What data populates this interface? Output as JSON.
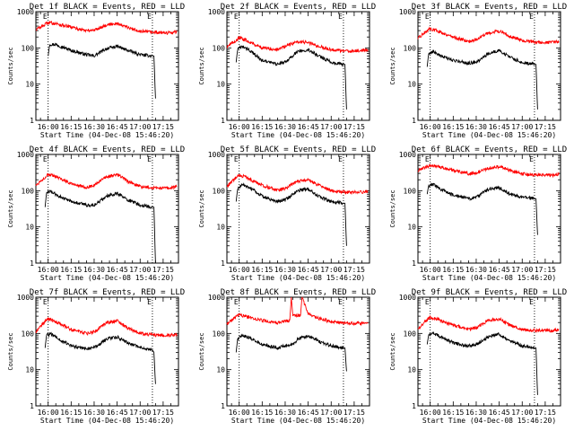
{
  "chart_data": [
    {
      "type": "line",
      "title": "Det 1f BLACK = Events, RED = LLD",
      "xlabel": "Start Time (04-Dec-08 15:46:20)",
      "ylabel": "Counts/sec",
      "xlim": [
        "15:52",
        "17:25"
      ],
      "ylim": [
        1,
        1000
      ],
      "yscale": "log",
      "xticks": [
        "16:00",
        "16:15",
        "16:30",
        "16:45",
        "17:00",
        "17:15"
      ],
      "yticks": [
        "1",
        "10",
        "100",
        "1000"
      ],
      "corner_markers": [
        "E",
        "E"
      ],
      "dotted_vlines": [
        "16:00",
        "17:08"
      ],
      "series": [
        {
          "color": "#000000",
          "x": [
            "16:00",
            "16:01",
            "16:05",
            "16:15",
            "16:25",
            "16:30",
            "16:38",
            "16:45",
            "16:52",
            "17:00",
            "17:04",
            "17:08",
            "17:09",
            "17:10"
          ],
          "values": [
            60,
            125,
            125,
            85,
            65,
            60,
            95,
            110,
            85,
            65,
            62,
            60,
            60,
            4
          ]
        },
        {
          "color": "#ff0000",
          "x": [
            "15:52",
            "15:58",
            "16:00",
            "16:05",
            "16:15",
            "16:25",
            "16:30",
            "16:38",
            "16:45",
            "16:52",
            "17:00",
            "17:10",
            "17:20",
            "17:24"
          ],
          "values": [
            320,
            440,
            500,
            470,
            370,
            300,
            310,
            430,
            480,
            360,
            290,
            265,
            260,
            280
          ]
        }
      ]
    },
    {
      "type": "line",
      "title": "Det 2f BLACK = Events, RED = LLD",
      "xlabel": "Start Time (04-Dec-08 15:46:20)",
      "ylabel": "Counts/sec",
      "xlim": [
        "15:52",
        "17:25"
      ],
      "ylim": [
        1,
        1000
      ],
      "yscale": "log",
      "xticks": [
        "16:00",
        "16:15",
        "16:30",
        "16:45",
        "17:00",
        "17:15"
      ],
      "yticks": [
        "1",
        "10",
        "100",
        "1000"
      ],
      "corner_markers": [
        "E",
        "E"
      ],
      "dotted_vlines": [
        "16:00",
        "17:08"
      ],
      "series": [
        {
          "color": "#000000",
          "x": [
            "15:58",
            "15:59",
            "16:02",
            "16:07",
            "16:15",
            "16:25",
            "16:30",
            "16:38",
            "16:45",
            "16:52",
            "17:00",
            "17:08",
            "17:09",
            "17:10"
          ],
          "values": [
            40,
            90,
            110,
            85,
            45,
            35,
            40,
            80,
            90,
            60,
            40,
            35,
            35,
            2
          ]
        },
        {
          "color": "#ff0000",
          "x": [
            "15:52",
            "15:56",
            "16:00",
            "16:05",
            "16:15",
            "16:25",
            "16:30",
            "16:38",
            "16:45",
            "16:52",
            "17:00",
            "17:10",
            "17:20",
            "17:24"
          ],
          "values": [
            110,
            140,
            190,
            160,
            100,
            90,
            110,
            150,
            140,
            110,
            90,
            80,
            85,
            90
          ]
        }
      ]
    },
    {
      "type": "line",
      "title": "Det 3f BLACK = Events, RED = LLD",
      "xlabel": "Start Time (04-Dec-08 15:46:20)",
      "ylabel": "Counts/sec",
      "xlim": [
        "15:52",
        "17:25"
      ],
      "ylim": [
        1,
        1000
      ],
      "yscale": "log",
      "xticks": [
        "16:00",
        "16:15",
        "16:30",
        "16:45",
        "17:00",
        "17:15"
      ],
      "yticks": [
        "1",
        "10",
        "100",
        "1000"
      ],
      "corner_markers": [
        "E",
        "E"
      ],
      "dotted_vlines": [
        "16:00",
        "17:08"
      ],
      "series": [
        {
          "color": "#000000",
          "x": [
            "15:58",
            "15:59",
            "16:02",
            "16:07",
            "16:15",
            "16:25",
            "16:30",
            "16:38",
            "16:45",
            "16:52",
            "17:00",
            "17:08",
            "17:09",
            "17:10"
          ],
          "values": [
            30,
            70,
            80,
            60,
            45,
            38,
            40,
            70,
            85,
            55,
            40,
            35,
            35,
            2
          ]
        },
        {
          "color": "#ff0000",
          "x": [
            "15:52",
            "15:56",
            "16:00",
            "16:05",
            "16:15",
            "16:25",
            "16:30",
            "16:38",
            "16:45",
            "16:52",
            "17:00",
            "17:10",
            "17:20",
            "17:24"
          ],
          "values": [
            180,
            260,
            340,
            290,
            200,
            150,
            170,
            260,
            290,
            210,
            160,
            140,
            140,
            150
          ]
        }
      ]
    },
    {
      "type": "line",
      "title": "Det 4f BLACK = Events, RED = LLD",
      "xlabel": "Start Time (04-Dec-08 15:46:20)",
      "ylabel": "Counts/sec",
      "xlim": [
        "15:52",
        "17:25"
      ],
      "ylim": [
        1,
        1000
      ],
      "yscale": "log",
      "xticks": [
        "16:00",
        "16:15",
        "16:30",
        "16:45",
        "17:00",
        "17:15"
      ],
      "yticks": [
        "1",
        "10",
        "100",
        "1000"
      ],
      "corner_markers": [
        "E",
        "E"
      ],
      "dotted_vlines": [
        "16:00",
        "17:08"
      ],
      "series": [
        {
          "color": "#000000",
          "x": [
            "15:58",
            "15:59",
            "16:02",
            "16:07",
            "16:15",
            "16:25",
            "16:30",
            "16:38",
            "16:45",
            "16:52",
            "17:00",
            "17:08",
            "17:09",
            "17:10"
          ],
          "values": [
            35,
            90,
            95,
            70,
            50,
            40,
            40,
            70,
            85,
            55,
            40,
            35,
            35,
            1
          ]
        },
        {
          "color": "#ff0000",
          "x": [
            "15:52",
            "15:56",
            "16:00",
            "16:05",
            "16:15",
            "16:25",
            "16:30",
            "16:38",
            "16:45",
            "16:52",
            "17:00",
            "17:10",
            "17:20",
            "17:24"
          ],
          "values": [
            140,
            200,
            280,
            240,
            160,
            120,
            140,
            240,
            280,
            180,
            130,
            120,
            120,
            130
          ]
        }
      ]
    },
    {
      "type": "line",
      "title": "Det 5f BLACK = Events, RED = LLD",
      "xlabel": "Start Time (04-Dec-08 15:46:20)",
      "ylabel": "Counts/sec",
      "xlim": [
        "15:52",
        "17:25"
      ],
      "ylim": [
        1,
        1000
      ],
      "yscale": "log",
      "xticks": [
        "16:00",
        "16:15",
        "16:30",
        "16:45",
        "17:00",
        "17:15"
      ],
      "yticks": [
        "1",
        "10",
        "100",
        "1000"
      ],
      "corner_markers": [
        "E",
        "E"
      ],
      "dotted_vlines": [
        "16:00",
        "17:08"
      ],
      "series": [
        {
          "color": "#000000",
          "x": [
            "15:58",
            "15:59",
            "16:02",
            "16:07",
            "16:15",
            "16:25",
            "16:30",
            "16:38",
            "16:45",
            "16:52",
            "17:00",
            "17:08",
            "17:09",
            "17:10"
          ],
          "values": [
            50,
            110,
            145,
            120,
            70,
            50,
            55,
            100,
            110,
            70,
            50,
            45,
            45,
            3
          ]
        },
        {
          "color": "#ff0000",
          "x": [
            "15:52",
            "15:56",
            "16:00",
            "16:05",
            "16:15",
            "16:25",
            "16:30",
            "16:38",
            "16:45",
            "16:52",
            "17:00",
            "17:10",
            "17:20",
            "17:24"
          ],
          "values": [
            130,
            190,
            270,
            230,
            140,
            105,
            115,
            180,
            200,
            140,
            100,
            90,
            90,
            95
          ]
        }
      ]
    },
    {
      "type": "line",
      "title": "Det 6f BLACK = Events, RED = LLD",
      "xlabel": "Start Time (04-Dec-08 15:46:20)",
      "ylabel": "Counts/sec",
      "xlim": [
        "15:52",
        "17:25"
      ],
      "ylim": [
        1,
        1000
      ],
      "yscale": "log",
      "xticks": [
        "16:00",
        "16:15",
        "16:30",
        "16:45",
        "17:00",
        "17:15"
      ],
      "yticks": [
        "1",
        "10",
        "100",
        "1000"
      ],
      "corner_markers": [
        "E",
        "E"
      ],
      "dotted_vlines": [
        "16:00",
        "17:08"
      ],
      "series": [
        {
          "color": "#000000",
          "x": [
            "15:58",
            "15:59",
            "16:02",
            "16:07",
            "16:15",
            "16:25",
            "16:30",
            "16:38",
            "16:45",
            "16:52",
            "17:00",
            "17:08",
            "17:09",
            "17:10"
          ],
          "values": [
            80,
            140,
            150,
            110,
            75,
            60,
            65,
            110,
            120,
            80,
            65,
            60,
            60,
            6
          ]
        },
        {
          "color": "#ff0000",
          "x": [
            "15:52",
            "15:56",
            "16:00",
            "16:05",
            "16:15",
            "16:25",
            "16:30",
            "16:38",
            "16:45",
            "16:52",
            "17:00",
            "17:10",
            "17:20",
            "17:24"
          ],
          "values": [
            350,
            430,
            500,
            460,
            360,
            300,
            310,
            420,
            460,
            360,
            290,
            270,
            270,
            280
          ]
        }
      ]
    },
    {
      "type": "line",
      "title": "Det 7f BLACK = Events, RED = LLD",
      "xlabel": "Start Time (04-Dec-08 15:46:20)",
      "ylabel": "Counts/sec",
      "xlim": [
        "15:52",
        "17:25"
      ],
      "ylim": [
        1,
        1000
      ],
      "yscale": "log",
      "xticks": [
        "16:00",
        "16:15",
        "16:30",
        "16:45",
        "17:00",
        "17:15"
      ],
      "yticks": [
        "1",
        "10",
        "100",
        "1000"
      ],
      "corner_markers": [
        "E",
        "E"
      ],
      "dotted_vlines": [
        "16:00",
        "17:08"
      ],
      "series": [
        {
          "color": "#000000",
          "x": [
            "15:58",
            "15:59",
            "16:02",
            "16:07",
            "16:15",
            "16:25",
            "16:30",
            "16:38",
            "16:45",
            "16:52",
            "17:00",
            "17:08",
            "17:09",
            "17:10"
          ],
          "values": [
            40,
            90,
            95,
            70,
            45,
            38,
            40,
            70,
            80,
            55,
            40,
            35,
            30,
            4
          ]
        },
        {
          "color": "#ff0000",
          "x": [
            "15:52",
            "15:56",
            "16:00",
            "16:05",
            "16:15",
            "16:25",
            "16:30",
            "16:38",
            "16:45",
            "16:52",
            "17:00",
            "17:10",
            "17:20",
            "17:24"
          ],
          "values": [
            110,
            180,
            250,
            210,
            130,
            100,
            110,
            200,
            220,
            140,
            100,
            90,
            90,
            95
          ]
        }
      ]
    },
    {
      "type": "line",
      "title": "Det 8f BLACK = Events, RED = LLD",
      "xlabel": "Start Time (04-Dec-08 15:46:20)",
      "ylabel": "Counts/sec",
      "xlim": [
        "15:52",
        "17:25"
      ],
      "ylim": [
        1,
        1000
      ],
      "yscale": "log",
      "xticks": [
        "16:00",
        "16:15",
        "16:30",
        "16:45",
        "17:00",
        "17:15"
      ],
      "yticks": [
        "1",
        "10",
        "100",
        "1000"
      ],
      "corner_markers": [
        "E",
        "E"
      ],
      "dotted_vlines": [
        "16:00",
        "17:08"
      ],
      "series": [
        {
          "color": "#000000",
          "x": [
            "15:58",
            "15:59",
            "16:02",
            "16:07",
            "16:15",
            "16:25",
            "16:30",
            "16:37",
            "16:38",
            "16:45",
            "16:52",
            "17:00",
            "17:08",
            "17:09",
            "17:10"
          ],
          "values": [
            30,
            70,
            90,
            75,
            50,
            40,
            45,
            55,
            70,
            85,
            60,
            45,
            40,
            40,
            9
          ]
        },
        {
          "color": "#ff0000",
          "x": [
            "15:52",
            "15:56",
            "16:00",
            "16:05",
            "16:15",
            "16:25",
            "16:33",
            "16:34",
            "16:35",
            "16:40",
            "16:41",
            "16:45",
            "16:52",
            "17:00",
            "17:10",
            "17:20",
            "17:24"
          ],
          "values": [
            180,
            250,
            330,
            290,
            230,
            190,
            230,
            1000,
            300,
            320,
            1000,
            340,
            260,
            210,
            190,
            190,
            200
          ]
        }
      ]
    },
    {
      "type": "line",
      "title": "Det 9f BLACK = Events, RED = LLD",
      "xlabel": "Start Time (04-Dec-08 15:46:20)",
      "ylabel": "Counts/sec",
      "xlim": [
        "15:52",
        "17:25"
      ],
      "ylim": [
        1,
        1000
      ],
      "yscale": "log",
      "xticks": [
        "16:00",
        "16:15",
        "16:30",
        "16:45",
        "17:00",
        "17:15"
      ],
      "yticks": [
        "1",
        "10",
        "100",
        "1000"
      ],
      "corner_markers": [
        "E",
        "E"
      ],
      "dotted_vlines": [
        "16:00",
        "17:08"
      ],
      "series": [
        {
          "color": "#000000",
          "x": [
            "15:58",
            "15:59",
            "16:02",
            "16:07",
            "16:15",
            "16:25",
            "16:30",
            "16:38",
            "16:45",
            "16:52",
            "17:00",
            "17:08",
            "17:09",
            "17:10"
          ],
          "values": [
            50,
            90,
            100,
            80,
            55,
            45,
            50,
            80,
            95,
            60,
            45,
            40,
            40,
            2
          ]
        },
        {
          "color": "#ff0000",
          "x": [
            "15:52",
            "15:56",
            "16:00",
            "16:05",
            "16:15",
            "16:25",
            "16:30",
            "16:38",
            "16:45",
            "16:52",
            "17:00",
            "17:10",
            "17:20",
            "17:24"
          ],
          "values": [
            130,
            200,
            280,
            240,
            170,
            130,
            140,
            230,
            250,
            170,
            130,
            120,
            120,
            130
          ]
        }
      ]
    }
  ]
}
